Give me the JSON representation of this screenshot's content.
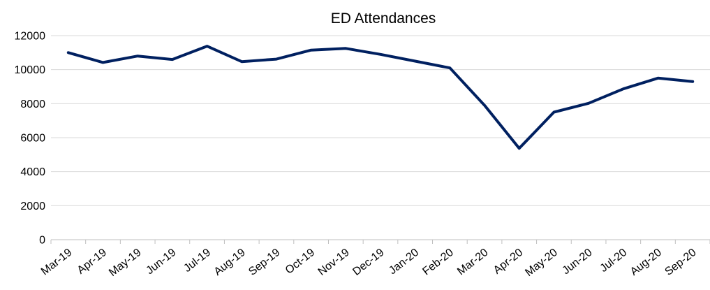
{
  "chart_data": {
    "type": "line",
    "title": "ED Attendances",
    "xlabel": "",
    "ylabel": "",
    "categories": [
      "Mar-19",
      "Apr-19",
      "May-19",
      "Jun-19",
      "Jul-19",
      "Aug-19",
      "Sep-19",
      "Oct-19",
      "Nov-19",
      "Dec-19",
      "Jan-20",
      "Feb-20",
      "Mar-20",
      "Apr-20",
      "May-20",
      "Jun-20",
      "Jul-20",
      "Aug-20",
      "Sep-20"
    ],
    "series": [
      {
        "values": [
          11000,
          10420,
          10800,
          10600,
          11380,
          10470,
          10620,
          11150,
          11250,
          10900,
          10500,
          10100,
          7900,
          5370,
          7500,
          8020,
          8870,
          9500,
          9300
        ],
        "color": "#002060"
      }
    ],
    "ylim": [
      0,
      12000
    ],
    "yticks": [
      0,
      2000,
      4000,
      6000,
      8000,
      10000,
      12000
    ],
    "grid": true,
    "legend": "none"
  }
}
